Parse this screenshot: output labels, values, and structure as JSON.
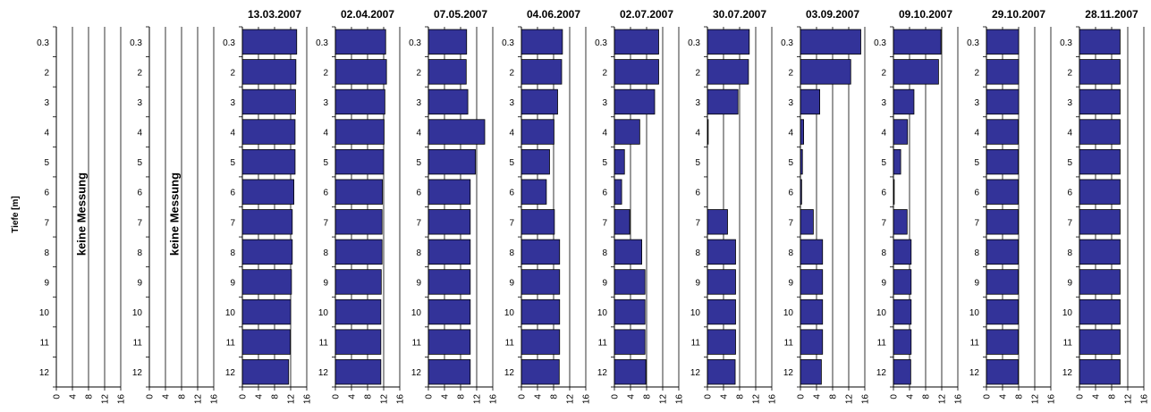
{
  "chart_data": {
    "type": "bar",
    "orientation": "horizontal",
    "ylabel": "Tiefe [m]",
    "depth_labels": [
      "0.3",
      "2",
      "3",
      "4",
      "5",
      "6",
      "7",
      "8",
      "9",
      "10",
      "11",
      "12"
    ],
    "xlim": [
      0,
      16
    ],
    "x_ticks": [
      "0",
      "4",
      "8",
      "12",
      "16"
    ],
    "bar_color": "#333399",
    "gridlines": "vertical",
    "panels": [
      {
        "title": "",
        "note": "keine Messung",
        "values": []
      },
      {
        "title": "",
        "note": "keine Messung",
        "values": []
      },
      {
        "title": "13.03.2007",
        "note": "",
        "values": [
          13.5,
          13.3,
          13.2,
          13.1,
          13.1,
          12.8,
          12.4,
          12.4,
          12.2,
          12.0,
          11.9,
          11.5
        ]
      },
      {
        "title": "02.04.2007",
        "note": "",
        "values": [
          12.5,
          12.7,
          12.3,
          12.1,
          12.0,
          11.7,
          11.6,
          11.6,
          11.4,
          11.3,
          11.3,
          11.3
        ]
      },
      {
        "title": "07.05.2007",
        "note": "",
        "values": [
          9.5,
          9.4,
          9.8,
          14.0,
          11.7,
          10.4,
          10.4,
          10.4,
          10.4,
          10.4,
          10.4,
          10.4
        ]
      },
      {
        "title": "04.06.2007",
        "note": "",
        "values": [
          10.2,
          10.0,
          9.0,
          8.1,
          7.0,
          6.2,
          8.2,
          9.5,
          9.5,
          9.5,
          9.5,
          9.4
        ]
      },
      {
        "title": "02.07.2007",
        "note": "",
        "values": [
          11.0,
          11.0,
          10.0,
          6.3,
          2.5,
          1.8,
          3.8,
          6.8,
          7.6,
          7.6,
          7.6,
          7.8
        ]
      },
      {
        "title": "30.07.2007",
        "note": "",
        "values": [
          10.4,
          10.2,
          7.6,
          0.2,
          0.0,
          0.0,
          5.0,
          7.0,
          7.0,
          7.0,
          7.0,
          6.9
        ]
      },
      {
        "title": "03.09.2007",
        "note": "",
        "values": [
          15.0,
          12.5,
          4.8,
          0.8,
          0.5,
          0.3,
          3.2,
          5.5,
          5.5,
          5.5,
          5.5,
          5.2
        ]
      },
      {
        "title": "09.10.2007",
        "note": "",
        "values": [
          11.8,
          11.2,
          5.1,
          3.5,
          1.8,
          0.2,
          3.4,
          4.4,
          4.4,
          4.4,
          4.4,
          4.3
        ]
      },
      {
        "title": "29.10.2007",
        "note": "",
        "values": [
          8.0,
          8.0,
          8.0,
          7.9,
          7.9,
          7.9,
          7.9,
          7.9,
          7.9,
          7.9,
          7.9,
          7.9
        ]
      },
      {
        "title": "28.11.2007",
        "note": "",
        "values": [
          10.1,
          10.1,
          10.1,
          10.1,
          10.1,
          10.1,
          10.1,
          10.1,
          10.1,
          10.1,
          10.1,
          10.1
        ]
      }
    ]
  }
}
